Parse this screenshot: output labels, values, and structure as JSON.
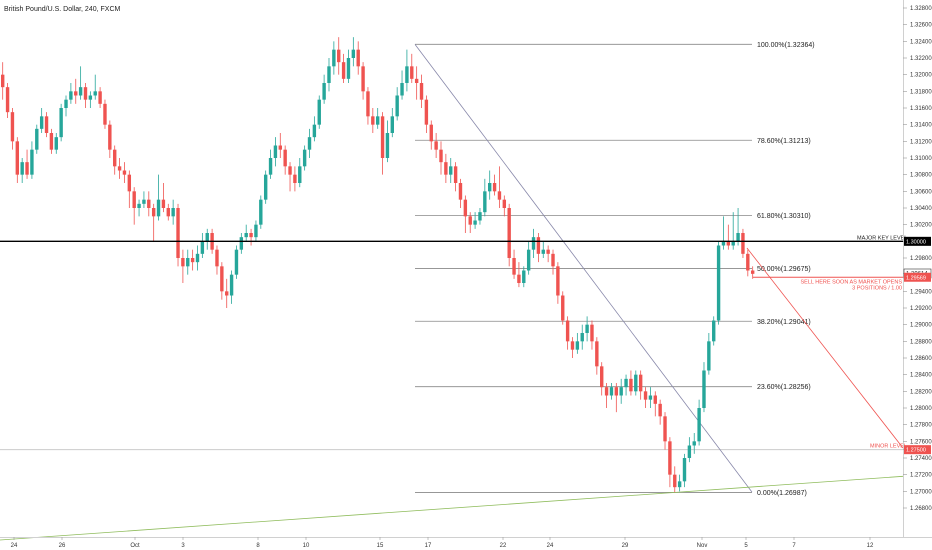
{
  "chart_data": {
    "type": "candlestick",
    "title": "British Pound/U.S. Dollar, 240, FXCM",
    "x_ticks": [
      "24",
      "26",
      "Oct",
      "3",
      "8",
      "10",
      "15",
      "17",
      "22",
      "24",
      "29",
      "Nov",
      "5",
      "7",
      "12"
    ],
    "y_ticks": [
      "1.32800",
      "1.32600",
      "1.32400",
      "1.32200",
      "1.32000",
      "1.31800",
      "1.31600",
      "1.31400",
      "1.31200",
      "1.31000",
      "1.30800",
      "1.30600",
      "1.30400",
      "1.30200",
      "1.30000",
      "1.29800",
      "1.29614",
      "1.29569",
      "1.29400",
      "1.29200",
      "1.29000",
      "1.28800",
      "1.28600",
      "1.28400",
      "1.28200",
      "1.28000",
      "1.27800",
      "1.27600",
      "1.27500",
      "1.27400",
      "1.27200",
      "1.27000",
      "1.26800"
    ],
    "ylim": [
      1.2675,
      1.3285
    ],
    "colors": {
      "up": "#26a69a",
      "down": "#ef5350",
      "fib": "#888888",
      "key": "#000000",
      "minor": "#cccccc",
      "sell": "#ef5350",
      "trend_fall": "#8888aa",
      "trend_rise": "#8fbc5c"
    },
    "fib_levels": [
      {
        "label": "100.00%(1.32364)",
        "value": 1.32364
      },
      {
        "label": "78.60%(1.31213)",
        "value": 1.31213
      },
      {
        "label": "61.80%(1.30310)",
        "value": 1.3031
      },
      {
        "label": "50.00%(1.29675)",
        "value": 1.29675
      },
      {
        "label": "38.20%(1.29041)",
        "value": 1.29041
      },
      {
        "label": "23.60%(1.28256)",
        "value": 1.28256
      },
      {
        "label": "0.00%(1.26987)",
        "value": 1.26987
      }
    ],
    "major_level": {
      "label": "MAJOR KEY LEVEL",
      "value": 1.3,
      "tag": "1.30000"
    },
    "minor_level": {
      "label": "MINOR LEVEL",
      "value": 1.275,
      "tag": "1.27500"
    },
    "sell_note": {
      "line1": "SELL HERE SOON AS MARKET OPENS",
      "line2": "3 POSITIONS / 1.00",
      "value": 1.29569,
      "tag": "1.29569"
    },
    "price_tag": "1.29614",
    "candles": [
      [
        1.32,
        1.3185,
        1.317,
        1.3215
      ],
      [
        1.3185,
        1.3155,
        1.3148,
        1.319
      ],
      [
        1.3155,
        1.312,
        1.311,
        1.316
      ],
      [
        1.312,
        1.308,
        1.307,
        1.3125
      ],
      [
        1.308,
        1.3095,
        1.307,
        1.31
      ],
      [
        1.3095,
        1.308,
        1.3075,
        1.311
      ],
      [
        1.308,
        1.311,
        1.3075,
        1.312
      ],
      [
        1.311,
        1.3135,
        1.3105,
        1.314
      ],
      [
        1.3135,
        1.315,
        1.313,
        1.316
      ],
      [
        1.315,
        1.313,
        1.3125,
        1.3155
      ],
      [
        1.313,
        1.311,
        1.3105,
        1.3135
      ],
      [
        1.311,
        1.3125,
        1.3105,
        1.313
      ],
      [
        1.3125,
        1.316,
        1.312,
        1.3165
      ],
      [
        1.316,
        1.317,
        1.315,
        1.3175
      ],
      [
        1.317,
        1.318,
        1.3165,
        1.319
      ],
      [
        1.318,
        1.3175,
        1.3165,
        1.3195
      ],
      [
        1.3175,
        1.3185,
        1.317,
        1.321
      ],
      [
        1.3185,
        1.317,
        1.316,
        1.319
      ],
      [
        1.317,
        1.3175,
        1.316,
        1.318
      ],
      [
        1.3175,
        1.318,
        1.317,
        1.32
      ],
      [
        1.318,
        1.3165,
        1.316,
        1.3185
      ],
      [
        1.3165,
        1.314,
        1.3135,
        1.317
      ],
      [
        1.314,
        1.311,
        1.31,
        1.3145
      ],
      [
        1.311,
        1.309,
        1.308,
        1.3115
      ],
      [
        1.309,
        1.3085,
        1.3075,
        1.31
      ],
      [
        1.3085,
        1.308,
        1.307,
        1.3095
      ],
      [
        1.308,
        1.306,
        1.304,
        1.3085
      ],
      [
        1.306,
        1.304,
        1.302,
        1.3065
      ],
      [
        1.304,
        1.3045,
        1.303,
        1.305
      ],
      [
        1.3045,
        1.305,
        1.304,
        1.306
      ],
      [
        1.305,
        1.304,
        1.303,
        1.306
      ],
      [
        1.304,
        1.303,
        1.3,
        1.3045
      ],
      [
        1.303,
        1.305,
        1.3025,
        1.308
      ],
      [
        1.305,
        1.304,
        1.3035,
        1.307
      ],
      [
        1.304,
        1.303,
        1.3025,
        1.3045
      ],
      [
        1.303,
        1.304,
        1.302,
        1.305
      ],
      [
        1.304,
        1.298,
        1.297,
        1.3045
      ],
      [
        1.298,
        1.297,
        1.295,
        1.299
      ],
      [
        1.297,
        1.298,
        1.296,
        1.299
      ],
      [
        1.298,
        1.2975,
        1.2965,
        1.299
      ],
      [
        1.2975,
        1.2985,
        1.2965,
        1.2995
      ],
      [
        1.2985,
        1.3,
        1.298,
        1.301
      ],
      [
        1.3,
        1.301,
        1.299,
        1.3015
      ],
      [
        1.301,
        1.299,
        1.2985,
        1.3015
      ],
      [
        1.299,
        1.297,
        1.296,
        1.2995
      ],
      [
        1.297,
        1.294,
        1.293,
        1.2975
      ],
      [
        1.294,
        1.2935,
        1.292,
        1.2955
      ],
      [
        1.2935,
        1.296,
        1.2925,
        1.2965
      ],
      [
        1.296,
        1.299,
        1.2955,
        1.2995
      ],
      [
        1.299,
        1.3005,
        1.2985,
        1.301
      ],
      [
        1.3005,
        1.301,
        1.3,
        1.302
      ],
      [
        1.301,
        1.3005,
        1.2995,
        1.3015
      ],
      [
        1.3005,
        1.302,
        1.3,
        1.3025
      ],
      [
        1.302,
        1.305,
        1.3015,
        1.3055
      ],
      [
        1.305,
        1.308,
        1.3045,
        1.3085
      ],
      [
        1.308,
        1.31,
        1.3075,
        1.311
      ],
      [
        1.31,
        1.3115,
        1.309,
        1.3125
      ],
      [
        1.3115,
        1.311,
        1.31,
        1.313
      ],
      [
        1.311,
        1.309,
        1.308,
        1.3115
      ],
      [
        1.309,
        1.308,
        1.306,
        1.3095
      ],
      [
        1.308,
        1.307,
        1.306,
        1.309
      ],
      [
        1.307,
        1.309,
        1.3065,
        1.31
      ],
      [
        1.309,
        1.311,
        1.3085,
        1.3115
      ],
      [
        1.311,
        1.3125,
        1.31,
        1.3135
      ],
      [
        1.3125,
        1.314,
        1.312,
        1.315
      ],
      [
        1.314,
        1.317,
        1.3135,
        1.3175
      ],
      [
        1.317,
        1.319,
        1.3165,
        1.32
      ],
      [
        1.319,
        1.321,
        1.318,
        1.322
      ],
      [
        1.321,
        1.323,
        1.32,
        1.324
      ],
      [
        1.323,
        1.3215,
        1.32,
        1.3245
      ],
      [
        1.3215,
        1.3195,
        1.319,
        1.3225
      ],
      [
        1.3195,
        1.322,
        1.319,
        1.323
      ],
      [
        1.322,
        1.323,
        1.321,
        1.3245
      ],
      [
        1.323,
        1.321,
        1.32,
        1.324
      ],
      [
        1.321,
        1.318,
        1.317,
        1.3215
      ],
      [
        1.318,
        1.315,
        1.314,
        1.3185
      ],
      [
        1.315,
        1.314,
        1.313,
        1.316
      ],
      [
        1.314,
        1.315,
        1.3135,
        1.316
      ],
      [
        1.315,
        1.31,
        1.308,
        1.3155
      ],
      [
        1.31,
        1.313,
        1.3095,
        1.3145
      ],
      [
        1.313,
        1.315,
        1.3125,
        1.316
      ],
      [
        1.315,
        1.3175,
        1.3145,
        1.3185
      ],
      [
        1.3175,
        1.319,
        1.317,
        1.3205
      ],
      [
        1.319,
        1.321,
        1.318,
        1.323
      ],
      [
        1.321,
        1.3195,
        1.319,
        1.3225
      ],
      [
        1.3195,
        1.319,
        1.317,
        1.321
      ],
      [
        1.319,
        1.317,
        1.316,
        1.32
      ],
      [
        1.317,
        1.314,
        1.313,
        1.3175
      ],
      [
        1.314,
        1.312,
        1.311,
        1.3145
      ],
      [
        1.312,
        1.311,
        1.31,
        1.313
      ],
      [
        1.311,
        1.3095,
        1.308,
        1.312
      ],
      [
        1.3095,
        1.308,
        1.307,
        1.3105
      ],
      [
        1.308,
        1.309,
        1.307,
        1.31
      ],
      [
        1.309,
        1.307,
        1.306,
        1.3095
      ],
      [
        1.307,
        1.305,
        1.304,
        1.3075
      ],
      [
        1.305,
        1.303,
        1.301,
        1.3055
      ],
      [
        1.303,
        1.302,
        1.301,
        1.3035
      ],
      [
        1.302,
        1.3025,
        1.3015,
        1.3035
      ],
      [
        1.3025,
        1.3035,
        1.302,
        1.304
      ],
      [
        1.3035,
        1.306,
        1.303,
        1.3075
      ],
      [
        1.306,
        1.307,
        1.305,
        1.3085
      ],
      [
        1.307,
        1.306,
        1.3055,
        1.308
      ],
      [
        1.306,
        1.305,
        1.304,
        1.309
      ],
      [
        1.305,
        1.304,
        1.303,
        1.3055
      ],
      [
        1.304,
        1.298,
        1.297,
        1.3045
      ],
      [
        1.298,
        1.296,
        1.2955,
        1.299
      ],
      [
        1.296,
        1.295,
        1.2945,
        1.2975
      ],
      [
        1.295,
        1.2965,
        1.2945,
        1.297
      ],
      [
        1.2965,
        1.299,
        1.296,
        1.3
      ],
      [
        1.299,
        1.3005,
        1.298,
        1.3015
      ],
      [
        1.3005,
        1.2985,
        1.2975,
        1.301
      ],
      [
        1.2985,
        1.299,
        1.298,
        1.3
      ],
      [
        1.299,
        1.2985,
        1.2975,
        1.2995
      ],
      [
        1.2985,
        1.297,
        1.296,
        1.299
      ],
      [
        1.297,
        1.2935,
        1.2925,
        1.2975
      ],
      [
        1.2935,
        1.2905,
        1.29,
        1.294
      ],
      [
        1.2905,
        1.288,
        1.287,
        1.291
      ],
      [
        1.288,
        1.287,
        1.286,
        1.2885
      ],
      [
        1.287,
        1.288,
        1.2865,
        1.289
      ],
      [
        1.288,
        1.289,
        1.287,
        1.29
      ],
      [
        1.289,
        1.29,
        1.288,
        1.291
      ],
      [
        1.29,
        1.288,
        1.287,
        1.2905
      ],
      [
        1.288,
        1.285,
        1.284,
        1.2885
      ],
      [
        1.285,
        1.2825,
        1.2815,
        1.2855
      ],
      [
        1.2825,
        1.2815,
        1.28,
        1.283
      ],
      [
        1.2815,
        1.2825,
        1.281,
        1.283
      ],
      [
        1.2825,
        1.2815,
        1.2795,
        1.283
      ],
      [
        1.2815,
        1.2825,
        1.2805,
        1.2835
      ],
      [
        1.2825,
        1.2835,
        1.2815,
        1.284
      ],
      [
        1.2835,
        1.282,
        1.2815,
        1.2845
      ],
      [
        1.282,
        1.284,
        1.2815,
        1.2845
      ],
      [
        1.284,
        1.282,
        1.281,
        1.2845
      ],
      [
        1.282,
        1.281,
        1.28,
        1.2825
      ],
      [
        1.281,
        1.2815,
        1.28,
        1.2825
      ],
      [
        1.2815,
        1.2805,
        1.279,
        1.282
      ],
      [
        1.2805,
        1.279,
        1.278,
        1.281
      ],
      [
        1.279,
        1.276,
        1.275,
        1.2795
      ],
      [
        1.276,
        1.272,
        1.2705,
        1.2765
      ],
      [
        1.272,
        1.2705,
        1.2699,
        1.273
      ],
      [
        1.2705,
        1.2712,
        1.27,
        1.272
      ],
      [
        1.2712,
        1.274,
        1.2705,
        1.2745
      ],
      [
        1.274,
        1.2755,
        1.2735,
        1.2765
      ],
      [
        1.2755,
        1.276,
        1.2745,
        1.277
      ],
      [
        1.276,
        1.28,
        1.2755,
        1.281
      ],
      [
        1.28,
        1.2845,
        1.2795,
        1.2855
      ],
      [
        1.2845,
        1.288,
        1.284,
        1.289
      ],
      [
        1.288,
        1.2905,
        1.2875,
        1.291
      ],
      [
        1.2905,
        1.2995,
        1.29,
        1.3
      ],
      [
        1.2995,
        1.3,
        1.299,
        1.303
      ],
      [
        1.3,
        1.2995,
        1.299,
        1.302
      ],
      [
        1.2995,
        1.3,
        1.299,
        1.3035
      ],
      [
        1.3,
        1.301,
        1.2995,
        1.304
      ],
      [
        1.301,
        1.2985,
        1.298,
        1.3015
      ],
      [
        1.2985,
        1.2965,
        1.2958,
        1.299
      ],
      [
        1.2965,
        1.2961,
        1.2955,
        1.297
      ]
    ]
  }
}
